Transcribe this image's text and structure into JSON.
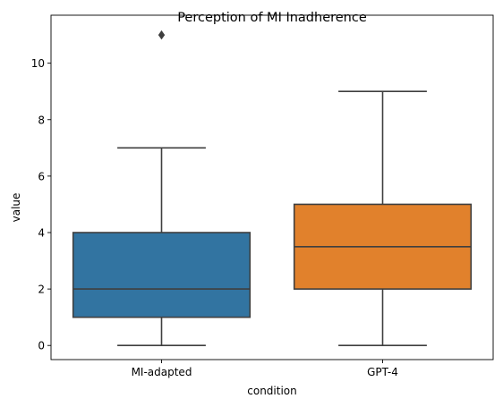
{
  "chart_data": {
    "type": "box",
    "title": "Perception of MI Inadherence",
    "xlabel": "condition",
    "ylabel": "value",
    "categories": [
      "MI-adapted",
      "GPT-4"
    ],
    "boxes": [
      {
        "category": "MI-adapted",
        "whisker_low": 0,
        "q1": 1,
        "median": 2,
        "q3": 4,
        "whisker_high": 7,
        "outliers": [
          11
        ],
        "color": "#3274a1"
      },
      {
        "category": "GPT-4",
        "whisker_low": 0,
        "q1": 2,
        "median": 3.5,
        "q3": 5,
        "whisker_high": 9,
        "outliers": [],
        "color": "#e1812c"
      }
    ],
    "ylim": [
      -0.5,
      11.7
    ],
    "yticks": [
      0,
      2,
      4,
      6,
      8,
      10
    ],
    "grid": false,
    "legend": "none"
  }
}
